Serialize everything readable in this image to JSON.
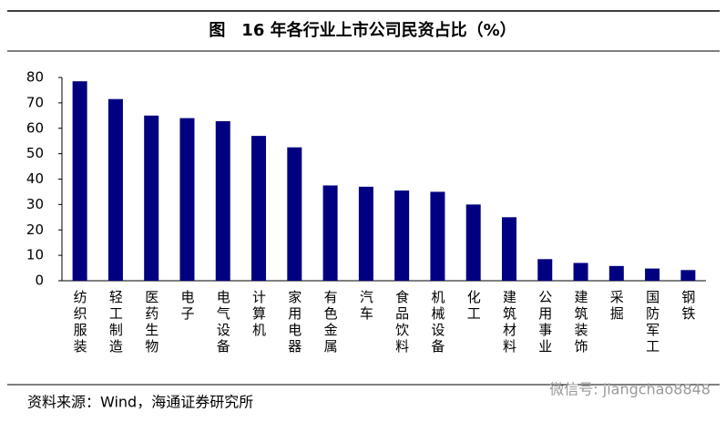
{
  "chart_data": {
    "type": "bar",
    "title": "图　16 年各行业上市公司民资占比（%）",
    "categories": [
      "纺织服装",
      "轻工制造",
      "医药生物",
      "电子",
      "电气设备",
      "计算机",
      "家用电器",
      "有色金属",
      "汽车",
      "食品饮料",
      "机械设备",
      "化工",
      "建筑材料",
      "公用事业",
      "建筑装饰",
      "采掘",
      "国防军工",
      "钢铁"
    ],
    "values": [
      78.5,
      71.5,
      65,
      64,
      62.8,
      57,
      52.5,
      37.5,
      37,
      35.5,
      35,
      30,
      25,
      8.5,
      7,
      5.8,
      4.8,
      4.2
    ],
    "color": "#000080",
    "ylim": [
      0,
      80
    ],
    "yticks": [
      0,
      10,
      20,
      30,
      40,
      50,
      60,
      70,
      80
    ],
    "grid": false,
    "source": "资料来源：Wind，海通证券研究所",
    "watermark": "微信号: jiangchao8848"
  }
}
